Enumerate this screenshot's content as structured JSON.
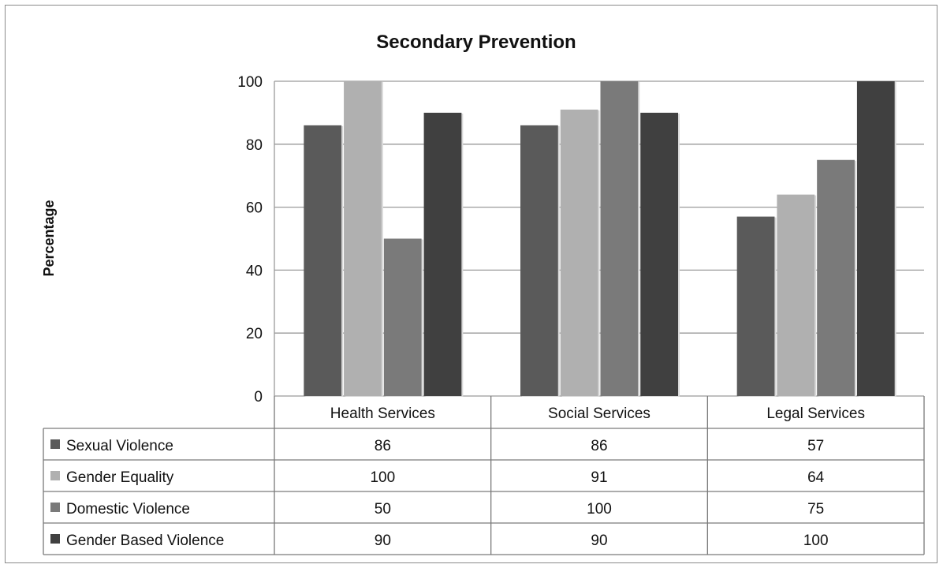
{
  "chart_data": {
    "type": "bar",
    "title": "Secondary Prevention",
    "ylabel": "Percentage",
    "xlabel": "",
    "ylim": [
      0,
      100
    ],
    "yticks": [
      0,
      20,
      40,
      60,
      80,
      100
    ],
    "grid": true,
    "legend": "data-table-below",
    "categories": [
      "Health Services",
      "Social Services",
      "Legal Services"
    ],
    "series": [
      {
        "name": "Sexual Violence",
        "values": [
          86,
          86,
          57
        ],
        "color": "#5a5a5a"
      },
      {
        "name": "Gender Equality",
        "values": [
          100,
          91,
          64
        ],
        "color": "#b0b0b0"
      },
      {
        "name": "Domestic Violence",
        "values": [
          50,
          100,
          75
        ],
        "color": "#7a7a7a"
      },
      {
        "name": "Gender Based Violence",
        "values": [
          90,
          90,
          100
        ],
        "color": "#404040"
      }
    ]
  }
}
